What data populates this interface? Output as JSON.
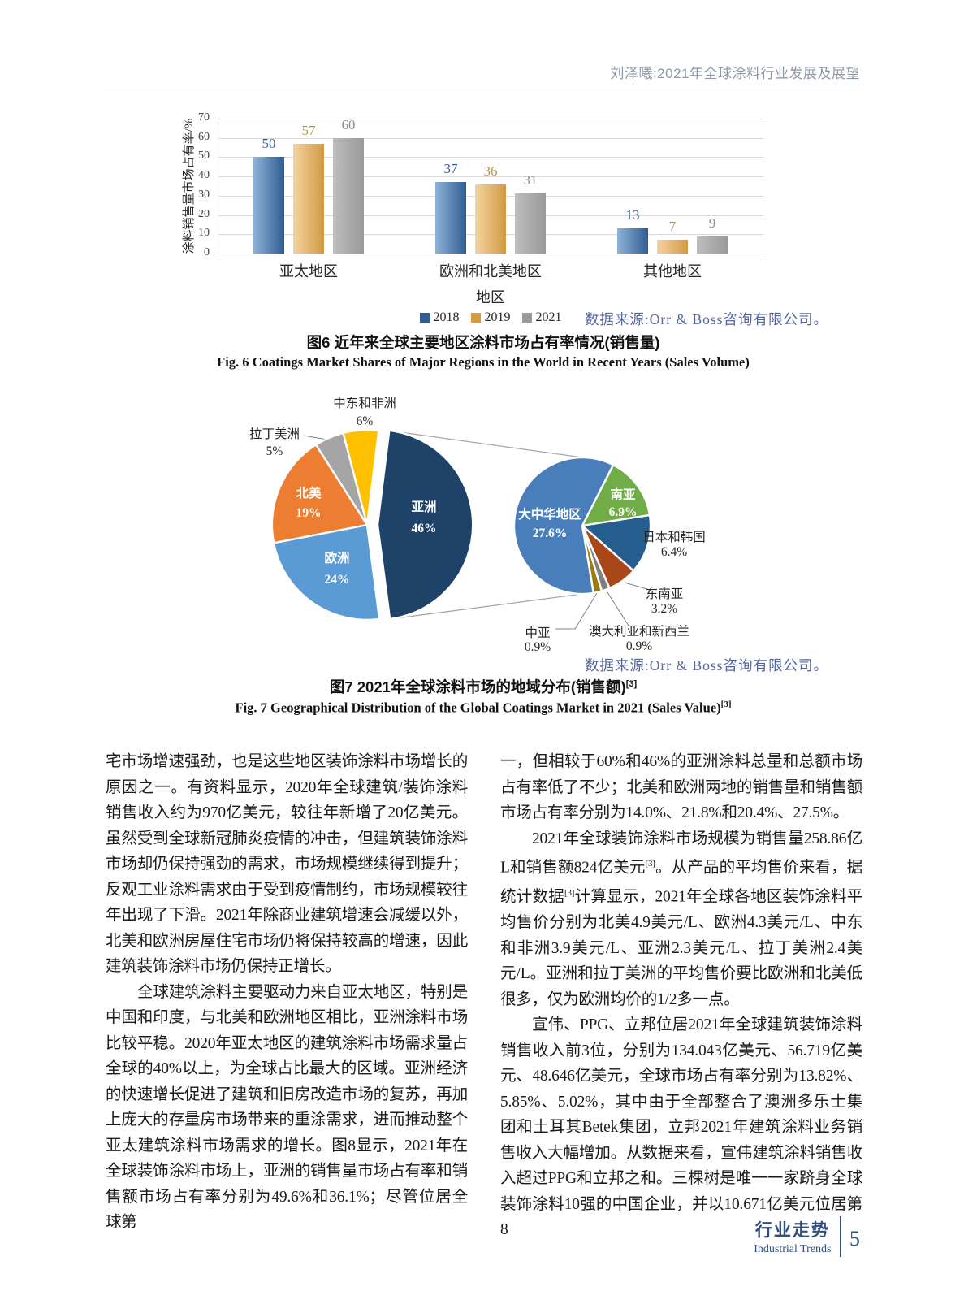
{
  "page": {
    "header_title": "刘泽曦:2021年全球涂料行业发展及展望",
    "footer": {
      "section_zh": "行业走势",
      "section_en": "Industrial Trends",
      "page_number": "5"
    }
  },
  "colors": {
    "source_text": "#5566a0",
    "footer_accent": "#2f4e7d",
    "header_text": "#8c97a5"
  },
  "fig6": {
    "source": "数据来源:Orr & Boss咨询有限公司。",
    "caption_zh": "图6  近年来全球主要地区涂料市场占有率情况(销售量)",
    "caption_en": "Fig. 6  Coatings Market Shares of Major Regions in the World in Recent Years (Sales Volume)"
  },
  "fig7": {
    "source": "数据来源:Orr & Boss咨询有限公司。",
    "caption_zh": "图7  2021年全球涂料市场的地域分布(销售额)",
    "caption_zh_sup": "[3]",
    "caption_en": "Fig. 7  Geographical Distribution of the Global Coatings Market in 2021 (Sales Value)",
    "caption_en_sup": "[3]"
  },
  "chart_data": [
    {
      "type": "bar",
      "categories": [
        "亚太地区",
        "欧洲和北美地区",
        "其他地区"
      ],
      "series": [
        {
          "name": "2018",
          "values": [
            50,
            37,
            13
          ],
          "color": "#2f5d92",
          "color_light": "#8fb3d9",
          "label_color": "#2e5b94"
        },
        {
          "name": "2019",
          "values": [
            57,
            36,
            7
          ],
          "color": "#d29a44",
          "color_light": "#f2d3a0",
          "label_color": "#c3913f"
        },
        {
          "name": "2021",
          "values": [
            60,
            31,
            9
          ],
          "color": "#9a9a9a",
          "color_light": "#bdbdbd",
          "label_color": "#8c8c8c"
        }
      ],
      "ylabel": "涂料销售量市场占有率/%",
      "xlabel": "地区",
      "ylim": [
        0,
        70
      ],
      "ytick_step": 10,
      "grid": true,
      "legend_position": "bottom"
    },
    {
      "type": "pie-of-pie",
      "main": {
        "labels": [
          "亚洲",
          "欧洲",
          "北美",
          "拉丁美洲",
          "中东和非洲"
        ],
        "values": [
          46,
          24,
          19,
          5,
          6
        ],
        "display": [
          "46%",
          "24%",
          "19%",
          "5%",
          "6%"
        ],
        "colors": [
          "#1f4269",
          "#5b9bd5",
          "#ed7d31",
          "#a5a5a5",
          "#ffc000"
        ],
        "exploded": "亚洲"
      },
      "secondary": {
        "parent": "亚洲",
        "labels": [
          "南亚",
          "日本和韩国",
          "东南亚",
          "澳大利亚和新西兰",
          "中亚",
          "大中华地区"
        ],
        "values": [
          6.9,
          6.4,
          3.2,
          0.9,
          0.9,
          27.6
        ],
        "display": [
          "6.9%",
          "6.4%",
          "3.2%",
          "0.9%",
          "0.9%",
          "27.6%"
        ],
        "colors": [
          "#70ad47",
          "#255e8e",
          "#a8471a",
          "#808080",
          "#9c7a10",
          "#4a7ebb"
        ]
      }
    }
  ],
  "columns": {
    "left": [
      {
        "indent": false,
        "segs": [
          {
            "t": "宅市场增速强劲，也是这些地区装饰涂料市场增长的原因之一。有资料显示，2020年全球建筑/装饰涂料销售收入约为970亿美元，较往年新增了20亿美元。虽然受到全球新冠肺炎疫情的冲击，但建筑装饰涂料市场却仍保持强劲的需求，市场规模继续得到提升；反观工业涂料需求由于受到疫情制约，市场规模较往年出现了下滑。2021年除商业建筑增速会减缓以外，北美和欧洲房屋住宅市场仍将保持较高的增速，因此建筑装饰涂料市场仍保持正增长。"
          }
        ]
      },
      {
        "indent": true,
        "segs": [
          {
            "t": "全球建筑涂料主要驱动力来自亚太地区，特别是中国和印度，与北美和欧洲地区相比，亚洲涂料市场比较平稳。2020年亚太地区的建筑涂料市场需求量占全球的40%以上，为全球占比最大的区域。亚洲经济的快速增长促进了建筑和旧房改造市场的复苏，再加上庞大的存量房市场带来的重涂需求，进而推动整个亚太建筑涂料市场需求的增长。图8显示，2021年在全球装饰涂料市场上，亚洲的销售量市场占有率和销售额市场占有率分别为49.6%和36.1%；尽管位居全球第"
          }
        ]
      }
    ],
    "right": [
      {
        "indent": false,
        "segs": [
          {
            "t": "一，但相较于60%和46%的亚洲涂料总量和总额市场占有率低了不少；北美和欧洲两地的销售量和销售额市场占有率分别为14.0%、21.8%和20.4%、27.5%。"
          }
        ]
      },
      {
        "indent": true,
        "segs": [
          {
            "t": "2021年全球装饰涂料市场规模为销售量258.86亿L和销售额824亿美元"
          },
          {
            "t": "[3]",
            "sup": true
          },
          {
            "t": "。从产品的平均售价来看，据统计数据"
          },
          {
            "t": "[3]",
            "sup": true
          },
          {
            "t": "计算显示，2021年全球各地区装饰涂料平均售价分别为北美4.9美元/L、欧洲4.3美元/L、中东和非洲3.9美元/L、亚洲2.3美元/L、拉丁美洲2.4美元/L。亚洲和拉丁美洲的平均售价要比欧洲和北美低很多，仅为欧洲均价的1/2多一点。"
          }
        ]
      },
      {
        "indent": true,
        "segs": [
          {
            "t": "宣伟、PPG、立邦位居2021年全球建筑装饰涂料销售收入前3位，分别为134.043亿美元、56.719亿美元、48.646亿美元，全球市场占有率分别为13.82%、5.85%、5.02%，其中由于全部整合了澳洲多乐士集团和土耳其Betek集团，立邦2021年建筑涂料业务销售收入大幅增加。从数据来看，宣伟建筑涂料销售收入超过PPG和立邦之和。三棵树是唯一一家跻身全球装饰涂料10强的中国企业，并以10.671亿美元位居第8"
          }
        ]
      }
    ]
  }
}
